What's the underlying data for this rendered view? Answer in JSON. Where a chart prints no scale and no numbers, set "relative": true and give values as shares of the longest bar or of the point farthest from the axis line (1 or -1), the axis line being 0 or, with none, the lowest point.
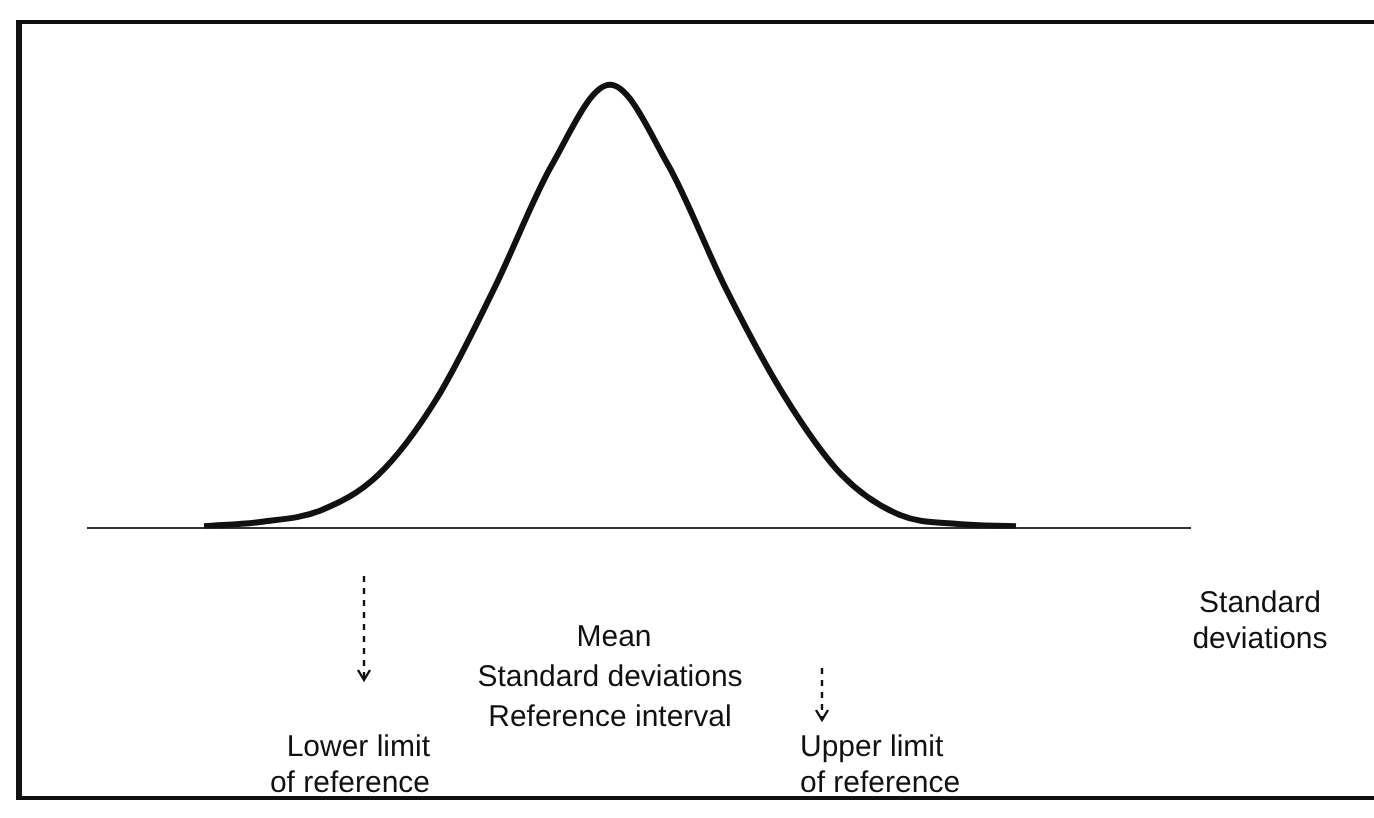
{
  "chart_data": {
    "type": "line",
    "relative": true,
    "xlabel": "Standard deviations",
    "categories": [
      null,
      null,
      null,
      null,
      null,
      null,
      null,
      null,
      null,
      null,
      null,
      null,
      null,
      null,
      null,
      null,
      null,
      null,
      null,
      null
    ],
    "values": [
      null,
      null,
      0.005,
      0.015,
      0.04,
      0.12,
      0.29,
      0.54,
      0.82,
      1,
      0.82,
      0.54,
      0.3,
      0.12,
      0.03,
      0.01,
      0.005,
      null,
      null,
      null
    ],
    "color": "#111111",
    "annotations": [
      "Mean",
      "Standard deviations",
      "Reference interval",
      "Lower limit of reference",
      "Upper limit of reference"
    ]
  }
}
